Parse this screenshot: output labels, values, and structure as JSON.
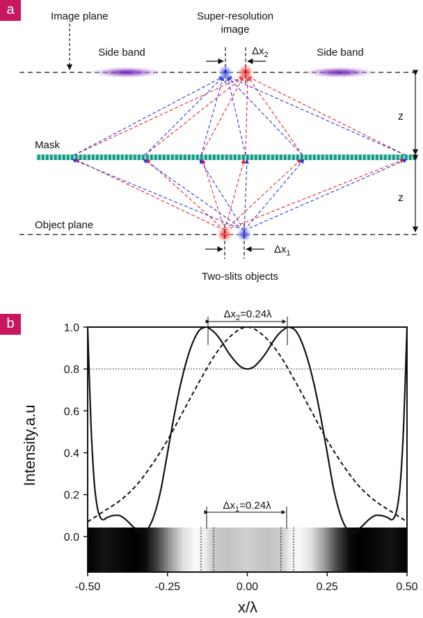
{
  "panel_a": {
    "badge": "a",
    "image_plane_label": "Image plane",
    "sr_title_line1": "Super-resolution",
    "sr_title_line2": "image",
    "side_band_left": "Side band",
    "side_band_right": "Side band",
    "dx2_label_main": "Δx",
    "dx2_label_sub": "2",
    "z_top": "z",
    "z_bottom": "z",
    "mask_label": "Mask",
    "object_plane_label": "Object plane",
    "dx1_label_main": "Δx",
    "dx1_label_sub": "1",
    "objects_label": "Two-slits objects",
    "colors": {
      "red": "#e8202a",
      "blue": "#2436e0",
      "mask_teal": "#1aa391",
      "purple": "#7a22a8"
    }
  },
  "panel_b": {
    "badge": "b",
    "ylabel": "Intensity,a.u",
    "xlabel": "x/λ",
    "dx2_annotation_main": "Δx",
    "dx2_annotation_sub": "2",
    "dx2_annotation_tail": "=0.24λ",
    "dx1_annotation_main": "Δx",
    "dx1_annotation_sub": "1",
    "dx1_annotation_tail": "=0.24λ",
    "y_tick_labels": [
      "1.0",
      "0.8",
      "0.6",
      "0.4",
      "0.2",
      "0.0"
    ],
    "x_tick_labels": [
      "-0.50",
      "-0.25",
      "0.00",
      "0.25",
      "0.50"
    ]
  },
  "chart_data": {
    "type": "line",
    "xlabel": "x/λ",
    "ylabel": "Intensity,a.u",
    "xlim": [
      -0.5,
      0.5
    ],
    "ylim": [
      -0.17,
      1.0
    ],
    "grid": false,
    "reference_line_y": 0.8,
    "series": [
      {
        "style": "solid",
        "x": [
          -0.5,
          -0.49,
          -0.48,
          -0.47,
          -0.46,
          -0.45,
          -0.44,
          -0.42,
          -0.4,
          -0.38,
          -0.36,
          -0.34,
          -0.33,
          -0.31,
          -0.29,
          -0.27,
          -0.25,
          -0.23,
          -0.21,
          -0.19,
          -0.17,
          -0.15,
          -0.13,
          -0.12,
          -0.1,
          -0.08,
          -0.06,
          -0.04,
          -0.02,
          0.0,
          0.02,
          0.04,
          0.06,
          0.08,
          0.1,
          0.12,
          0.13,
          0.15,
          0.17,
          0.19,
          0.21,
          0.23,
          0.25,
          0.27,
          0.29,
          0.31,
          0.33,
          0.34,
          0.36,
          0.38,
          0.4,
          0.42,
          0.44,
          0.45,
          0.46,
          0.47,
          0.48,
          0.49,
          0.5
        ],
        "y": [
          1.0,
          0.55,
          0.27,
          0.14,
          0.09,
          0.08,
          0.09,
          0.1,
          0.1,
          0.08,
          0.05,
          0.025,
          0.02,
          0.04,
          0.11,
          0.23,
          0.4,
          0.57,
          0.72,
          0.84,
          0.93,
          0.985,
          1.0,
          0.995,
          0.97,
          0.93,
          0.88,
          0.84,
          0.81,
          0.8,
          0.81,
          0.84,
          0.88,
          0.93,
          0.97,
          0.995,
          1.0,
          0.985,
          0.93,
          0.84,
          0.72,
          0.57,
          0.4,
          0.23,
          0.11,
          0.04,
          0.02,
          0.025,
          0.05,
          0.08,
          0.1,
          0.1,
          0.09,
          0.08,
          0.09,
          0.14,
          0.27,
          0.55,
          1.0
        ]
      },
      {
        "style": "dashed",
        "x": [
          -0.5,
          -0.45,
          -0.4,
          -0.35,
          -0.3,
          -0.25,
          -0.2,
          -0.15,
          -0.1,
          -0.05,
          0.0,
          0.05,
          0.1,
          0.15,
          0.2,
          0.25,
          0.3,
          0.35,
          0.4,
          0.45,
          0.5
        ],
        "y": [
          0.07,
          0.12,
          0.17,
          0.24,
          0.34,
          0.46,
          0.6,
          0.74,
          0.87,
          0.96,
          1.0,
          0.96,
          0.87,
          0.74,
          0.6,
          0.46,
          0.34,
          0.24,
          0.17,
          0.12,
          0.07
        ]
      }
    ],
    "annotations": [
      {
        "text": "Δx2=0.24λ",
        "x_range": [
          -0.12,
          0.12
        ],
        "y": 1.0
      },
      {
        "text": "Δx1=0.24λ",
        "x_range": [
          -0.12,
          0.12
        ],
        "y": 0.0
      }
    ],
    "xticks": [
      -0.5,
      -0.25,
      0.0,
      0.25,
      0.5
    ],
    "yticks": [
      0.0,
      0.2,
      0.4,
      0.6,
      0.8,
      1.0
    ],
    "intensity_strip": {
      "x": [
        -0.5,
        -0.45,
        -0.4,
        -0.35,
        -0.32,
        -0.28,
        -0.24,
        -0.2,
        -0.16,
        -0.13,
        -0.11,
        -0.06,
        0.0,
        0.06,
        0.11,
        0.13,
        0.16,
        0.2,
        0.24,
        0.28,
        0.32,
        0.35,
        0.4,
        0.45,
        0.5
      ],
      "gray": [
        0.0,
        0.08,
        0.03,
        0.0,
        0.04,
        0.28,
        0.62,
        0.88,
        0.98,
        0.92,
        0.8,
        0.76,
        0.82,
        0.76,
        0.8,
        0.92,
        0.98,
        0.88,
        0.62,
        0.28,
        0.04,
        0.0,
        0.03,
        0.08,
        0.0
      ],
      "dotted_markers_x": [
        -0.145,
        -0.105,
        0.105,
        0.145
      ]
    }
  }
}
